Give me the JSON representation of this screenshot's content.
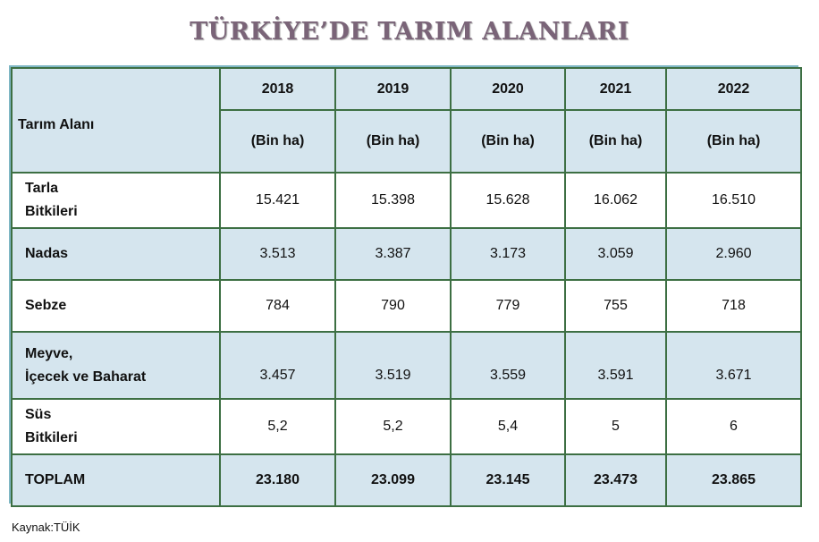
{
  "title": "TÜRKİYE’DE TARIM ALANLARI",
  "table": {
    "corner_label": "Tarım  Alanı",
    "years": [
      "2018",
      "2019",
      "2020",
      "2021",
      "2022"
    ],
    "unit": "(Bin ha)",
    "rows": [
      {
        "label_lines": [
          "Tarla",
          "Bitkileri"
        ],
        "values": [
          "15.421",
          "15.398",
          "15.628",
          "16.062",
          "16.510"
        ]
      },
      {
        "label_lines": [
          "Nadas"
        ],
        "values": [
          "3.513",
          "3.387",
          "3.173",
          "3.059",
          "2.960"
        ]
      },
      {
        "label_lines": [
          "Sebze"
        ],
        "values": [
          "784",
          "790",
          "779",
          "755",
          "718"
        ]
      },
      {
        "label_lines": [
          "Meyve,",
          "İçecek ve  Baharat"
        ],
        "values": [
          "3.457",
          "3.519",
          "3.559",
          "3.591",
          "3.671"
        ]
      },
      {
        "label_lines": [
          "Süs",
          "Bitkileri"
        ],
        "values": [
          "5,2",
          "5,2",
          "5,4",
          "5",
          "6"
        ]
      }
    ],
    "total": {
      "label": "TOPLAM",
      "values": [
        "23.180",
        "23.099",
        "23.145",
        "23.473",
        "23.865"
      ]
    }
  },
  "source": "Kaynak:TÜİK",
  "colors": {
    "title": "#7a6478",
    "shaded_row": "#d5e5ee",
    "border": "#3d6f43",
    "outer_border": "#7fb7c4"
  }
}
